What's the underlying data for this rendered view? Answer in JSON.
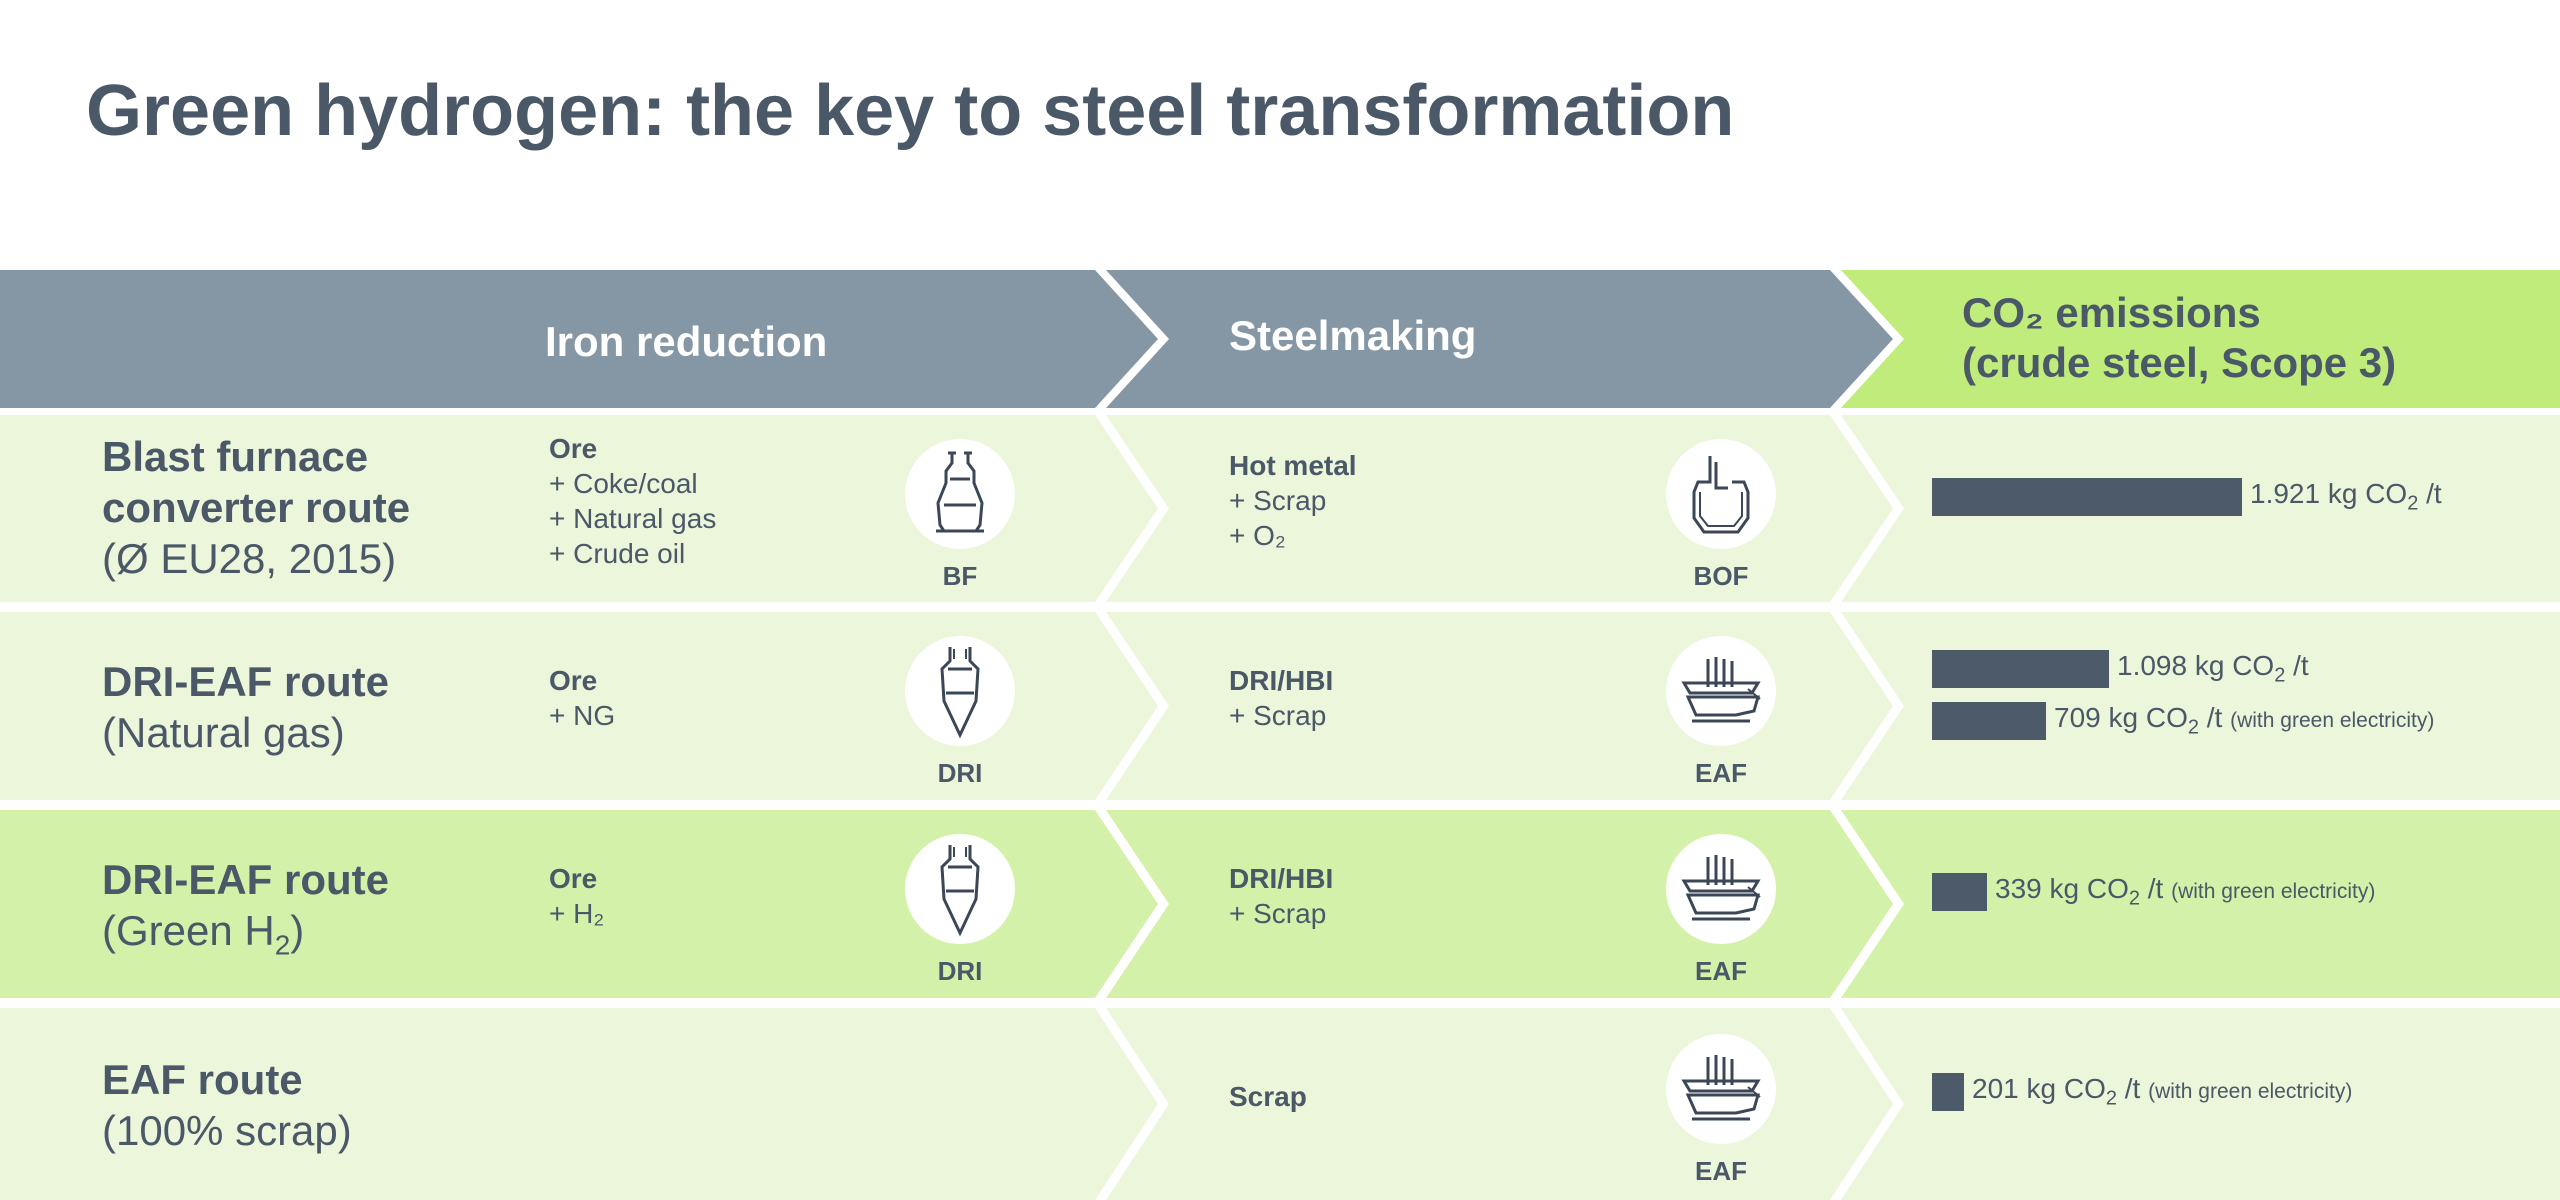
{
  "title": "Green hydrogen: the key to steel transformation",
  "headers": {
    "iron_reduction": "Iron reduction",
    "steelmaking": "Steelmaking",
    "co2_line1": "CO₂ emissions",
    "co2_line2": "(crude steel, Scope 3)"
  },
  "colors": {
    "header_gray": "#8596a5",
    "header_green": "#bfec7a",
    "row_light": "#ebf6da",
    "row_highlight": "#d4f1aa",
    "bar": "#4c5a69",
    "text": "#4a5868"
  },
  "rows": [
    {
      "title_bold_1": "Blast furnace",
      "title_bold_2": "converter route",
      "title_sub": "(Ø EU28, 2015)",
      "iron_inputs": [
        "Ore",
        "+ Coke/coal",
        "+ Natural gas",
        "+ Crude oil"
      ],
      "iron_icon": "blast-furnace-icon",
      "iron_badge": "BF",
      "steel_inputs": [
        "Hot metal",
        "+ Scrap",
        "+ O₂"
      ],
      "steel_icon": "converter-icon",
      "steel_badge": "BOF",
      "emissions": [
        {
          "value": 1921,
          "text": "1.921 kg CO",
          "unit": "/t",
          "note": ""
        }
      ]
    },
    {
      "title_bold_1": "DRI-EAF route",
      "title_bold_2": "",
      "title_sub": "(Natural gas)",
      "iron_inputs": [
        "Ore",
        "+ NG"
      ],
      "iron_icon": "dri-shaft-icon",
      "iron_badge": "DRI",
      "steel_inputs": [
        "DRI/HBI",
        "+ Scrap"
      ],
      "steel_icon": "electric-arc-furnace-icon",
      "steel_badge": "EAF",
      "emissions": [
        {
          "value": 1098,
          "text": "1.098 kg CO",
          "unit": "/t",
          "note": ""
        },
        {
          "value": 709,
          "text": "709 kg CO",
          "unit": "/t",
          "note": "(with green electricity)"
        }
      ]
    },
    {
      "title_bold_1": "DRI-EAF route",
      "title_bold_2": "",
      "title_sub": "(Green H",
      "title_sub_end": ")",
      "iron_inputs": [
        "Ore",
        "+ H₂"
      ],
      "iron_icon": "dri-shaft-icon",
      "iron_badge": "DRI",
      "steel_inputs": [
        "DRI/HBI",
        "+ Scrap"
      ],
      "steel_icon": "electric-arc-furnace-icon",
      "steel_badge": "EAF",
      "emissions": [
        {
          "value": 339,
          "text": "339 kg CO",
          "unit": "/t",
          "note": "(with green electricity)"
        }
      ]
    },
    {
      "title_bold_1": "EAF route",
      "title_bold_2": "",
      "title_sub": "(100% scrap)",
      "iron_inputs": [],
      "iron_icon": "",
      "iron_badge": "",
      "steel_inputs": [
        "Scrap"
      ],
      "steel_icon": "electric-arc-furnace-icon",
      "steel_badge": "EAF",
      "emissions": [
        {
          "value": 201,
          "text": "201 kg CO",
          "unit": "/t",
          "note": "(with green electricity)"
        }
      ]
    }
  ]
}
